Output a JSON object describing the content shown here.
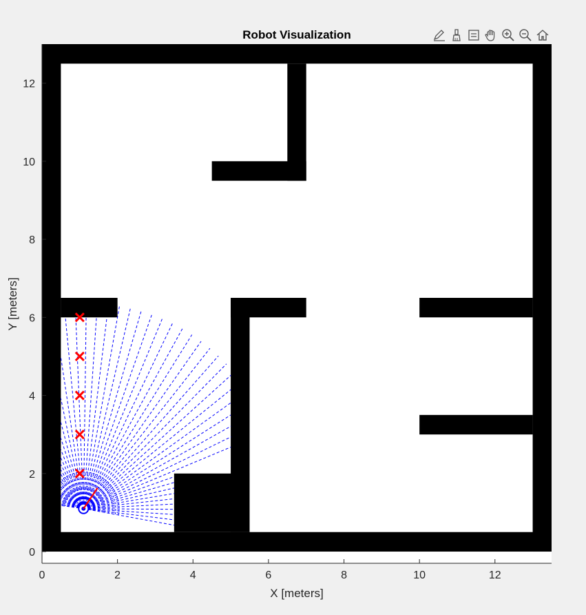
{
  "figure": {
    "title": "Robot Visualization",
    "toolbar": [
      {
        "name": "edit-plot-icon"
      },
      {
        "name": "brush-icon"
      },
      {
        "name": "datatip-icon"
      },
      {
        "name": "pan-hand-icon"
      },
      {
        "name": "zoom-in-icon"
      },
      {
        "name": "zoom-out-icon"
      },
      {
        "name": "home-icon"
      }
    ]
  },
  "chart_data": {
    "type": "occupancy-map",
    "title": "Robot Visualization",
    "xlabel": "X [meters]",
    "ylabel": "Y [meters]",
    "xlim": [
      0,
      13.5
    ],
    "ylim": [
      -0.3,
      13
    ],
    "xticks": [
      0,
      2,
      4,
      6,
      8,
      10,
      12
    ],
    "yticks": [
      0,
      2,
      4,
      6,
      8,
      10,
      12
    ],
    "obstacles": [
      {
        "name": "wall-bottom",
        "x0": 0,
        "y0": 0,
        "x1": 13.5,
        "y1": 0.5
      },
      {
        "name": "wall-top",
        "x0": 0,
        "y0": 12.5,
        "x1": 13.5,
        "y1": 13
      },
      {
        "name": "wall-left",
        "x0": 0,
        "y0": 0,
        "x1": 0.5,
        "y1": 13
      },
      {
        "name": "wall-right",
        "x0": 13,
        "y0": 0,
        "x1": 13.5,
        "y1": 13
      },
      {
        "name": "wall-upper-vertical",
        "x0": 6.5,
        "y0": 9.5,
        "x1": 7,
        "y1": 12.5
      },
      {
        "name": "wall-upper-horizontal",
        "x0": 4.5,
        "y0": 9.5,
        "x1": 7,
        "y1": 10
      },
      {
        "name": "wall-left-shelf",
        "x0": 0.5,
        "y0": 6,
        "x1": 2,
        "y1": 6.5
      },
      {
        "name": "wall-center-top",
        "x0": 5,
        "y0": 6,
        "x1": 7,
        "y1": 6.5
      },
      {
        "name": "wall-center-vertical",
        "x0": 5,
        "y0": 0.5,
        "x1": 5.5,
        "y1": 6.5
      },
      {
        "name": "block-bottom",
        "x0": 3.5,
        "y0": 0.5,
        "x1": 5.5,
        "y1": 2
      },
      {
        "name": "wall-right-upper-shelf",
        "x0": 10,
        "y0": 6,
        "x1": 13,
        "y1": 6.5
      },
      {
        "name": "wall-right-lower-shelf",
        "x0": 10,
        "y0": 3,
        "x1": 13,
        "y1": 3.5
      }
    ],
    "waypoints": [
      [
        1,
        2
      ],
      [
        1,
        3
      ],
      [
        1,
        4
      ],
      [
        1,
        5
      ],
      [
        1,
        6
      ]
    ],
    "robot": {
      "x": 1.1,
      "y": 1.1,
      "heading_deg": 55
    },
    "lidar": {
      "color": "#0000ff",
      "style": "dashed"
    },
    "colors": {
      "wall": "#000000",
      "free": "#ffffff",
      "waypoint": "#ff0000",
      "heading": "#ff0000",
      "robot": "#0000ff"
    }
  }
}
